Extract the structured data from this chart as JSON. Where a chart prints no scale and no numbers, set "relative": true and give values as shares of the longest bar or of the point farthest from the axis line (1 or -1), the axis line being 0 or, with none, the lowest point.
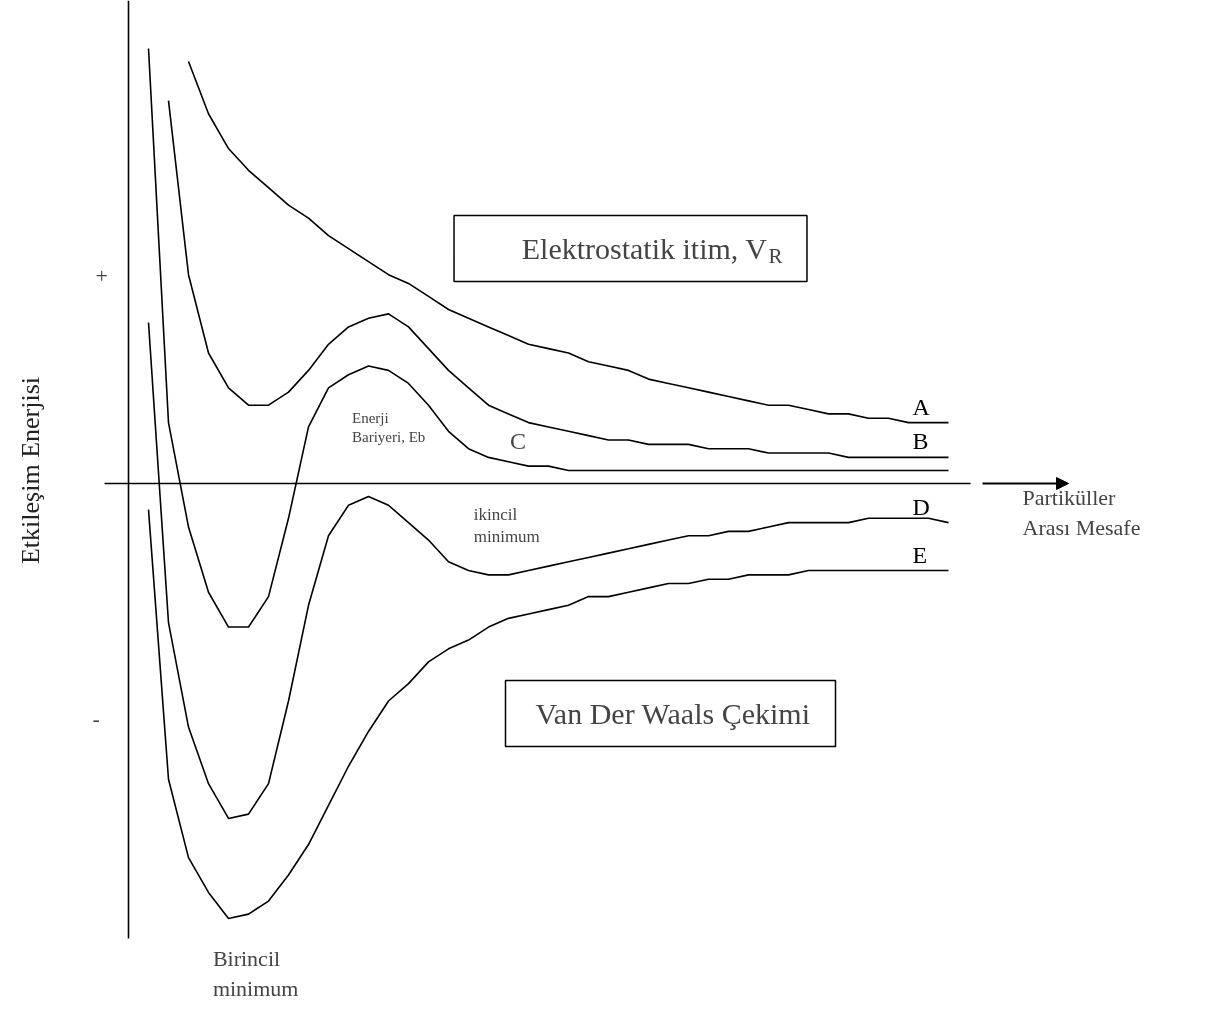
{
  "chart_data": {
    "type": "line",
    "relative": true,
    "xlabel": "Partiküller\nArası Mesafe",
    "ylabel": "Etkileşim Enerjisi",
    "tick_labels": false,
    "legend": false,
    "marker": "none",
    "line_style": "solid",
    "categories": [
      null,
      null,
      null,
      null,
      null,
      null,
      null,
      null,
      null,
      null,
      null,
      null,
      null,
      null,
      null,
      null,
      null,
      null,
      null,
      null,
      null,
      null,
      null,
      null,
      null,
      null,
      null,
      null,
      null,
      null,
      null,
      null,
      null,
      null,
      null,
      null,
      null,
      null,
      null,
      null,
      null
    ],
    "series": [
      {
        "name": "A",
        "color": "#000000",
        "values": [
          null,
          null,
          0.97,
          0.85,
          0.77,
          0.72,
          0.68,
          0.64,
          0.61,
          0.57,
          0.54,
          0.51,
          0.48,
          0.46,
          0.43,
          0.4,
          0.38,
          0.36,
          0.34,
          0.32,
          0.31,
          0.3,
          0.28,
          0.27,
          0.26,
          0.24,
          0.23,
          0.22,
          0.21,
          0.2,
          0.19,
          0.18,
          0.18,
          0.17,
          0.16,
          0.16,
          0.15,
          0.15,
          0.14,
          0.14,
          0.14
        ]
      },
      {
        "name": "B",
        "color": "#000000",
        "values": [
          null,
          0.88,
          0.48,
          0.3,
          0.22,
          0.18,
          0.18,
          0.21,
          0.26,
          0.32,
          0.36,
          0.38,
          0.39,
          0.36,
          0.31,
          0.26,
          0.22,
          0.18,
          0.16,
          0.14,
          0.13,
          0.12,
          0.11,
          0.1,
          0.1,
          0.09,
          0.09,
          0.09,
          0.08,
          0.08,
          0.08,
          0.07,
          0.07,
          0.07,
          0.07,
          0.06,
          0.06,
          0.06,
          0.06,
          0.06,
          0.06
        ]
      },
      {
        "color": "#000000",
        "values": [
          1.0,
          0.14,
          -0.1,
          -0.25,
          -0.33,
          -0.33,
          -0.26,
          -0.08,
          0.13,
          0.22,
          0.25,
          0.27,
          0.26,
          0.23,
          0.18,
          0.12,
          0.08,
          0.06,
          0.05,
          0.04,
          0.04,
          0.03,
          0.03,
          0.03,
          0.03,
          0.03,
          0.03,
          0.03,
          0.03,
          0.03,
          0.03,
          0.03,
          0.03,
          0.03,
          0.03,
          0.03,
          0.03,
          0.03,
          0.03,
          0.03,
          0.03
        ]
      },
      {
        "name": "D",
        "color": "#000000",
        "values": [
          0.37,
          -0.32,
          -0.56,
          -0.69,
          -0.77,
          -0.76,
          -0.69,
          -0.5,
          -0.28,
          -0.12,
          -0.05,
          -0.03,
          -0.05,
          -0.09,
          -0.13,
          -0.18,
          -0.2,
          -0.21,
          -0.21,
          -0.2,
          -0.19,
          -0.18,
          -0.17,
          -0.16,
          -0.15,
          -0.14,
          -0.13,
          -0.12,
          -0.12,
          -0.11,
          -0.11,
          -0.1,
          -0.09,
          -0.09,
          -0.09,
          -0.09,
          -0.08,
          -0.08,
          -0.08,
          -0.08,
          -0.09
        ]
      },
      {
        "name": "E",
        "color": "#000000",
        "values": [
          -0.06,
          -0.68,
          -0.86,
          -0.94,
          -1.0,
          -0.99,
          -0.96,
          -0.9,
          -0.83,
          -0.74,
          -0.65,
          -0.57,
          -0.5,
          -0.46,
          -0.41,
          -0.38,
          -0.36,
          -0.33,
          -0.31,
          -0.3,
          -0.29,
          -0.28,
          -0.26,
          -0.26,
          -0.25,
          -0.24,
          -0.23,
          -0.23,
          -0.22,
          -0.22,
          -0.21,
          -0.21,
          -0.21,
          -0.2,
          -0.2,
          -0.2,
          -0.2,
          -0.2,
          -0.2,
          -0.2,
          -0.2
        ]
      }
    ],
    "annotations": [
      "Elektrostatik itim, V$_{R}$",
      "Van Der Waals Çekimi",
      "Enerji\nBariyeri, Eb",
      "ikincil\nminimum",
      "Birincil\nminimum",
      "+",
      "-",
      "C"
    ]
  }
}
